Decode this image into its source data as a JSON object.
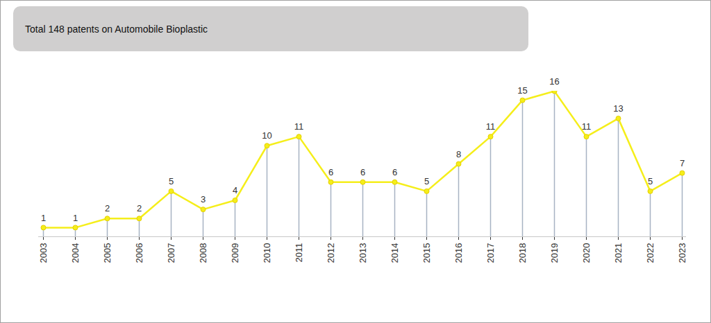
{
  "chart_data": {
    "type": "line",
    "title": "Total 148 patents on Automobile Bioplastic",
    "categories": [
      "2003",
      "2004",
      "2005",
      "2006",
      "2007",
      "2008",
      "2009",
      "2010",
      "2011",
      "2012",
      "2013",
      "2014",
      "2015",
      "2016",
      "2017",
      "2018",
      "2019",
      "2020",
      "2021",
      "2022",
      "2023"
    ],
    "values": [
      1,
      1,
      2,
      2,
      5,
      3,
      4,
      10,
      11,
      6,
      6,
      6,
      5,
      8,
      11,
      15,
      16,
      11,
      13,
      5,
      7
    ],
    "color": "#f5ee1a",
    "marker": "circle",
    "ylim": [
      0,
      16
    ],
    "grid": false,
    "data_labels": true,
    "tick_labels": "x"
  }
}
